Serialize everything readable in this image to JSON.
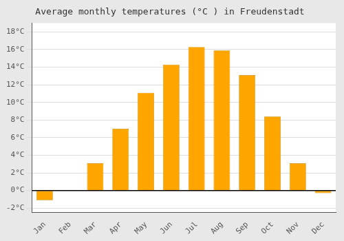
{
  "chart_data": {
    "type": "bar",
    "title": "Average monthly temperatures (°C ) in Freudenstadt",
    "categories": [
      "Jan",
      "Feb",
      "Mar",
      "Apr",
      "May",
      "Jun",
      "Jul",
      "Aug",
      "Sep",
      "Oct",
      "Nov",
      "Dec"
    ],
    "values": [
      -1.1,
      0.0,
      3.1,
      7.0,
      11.1,
      14.3,
      16.3,
      15.9,
      13.1,
      8.4,
      3.1,
      -0.3
    ],
    "color": "#FFA500",
    "ylim": [
      -2.5,
      19.0
    ],
    "yticks": [
      {
        "value": -2,
        "label": "-2°C"
      },
      {
        "value": 0,
        "label": "0°C"
      },
      {
        "value": 2,
        "label": "2°C"
      },
      {
        "value": 4,
        "label": "4°C"
      },
      {
        "value": 6,
        "label": "6°C"
      },
      {
        "value": 8,
        "label": "8°C"
      },
      {
        "value": 10,
        "label": "10°C"
      },
      {
        "value": 12,
        "label": "12°C"
      },
      {
        "value": 14,
        "label": "14°C"
      },
      {
        "value": 16,
        "label": "16°C"
      },
      {
        "value": 18,
        "label": "18°C"
      }
    ],
    "grid": true
  }
}
